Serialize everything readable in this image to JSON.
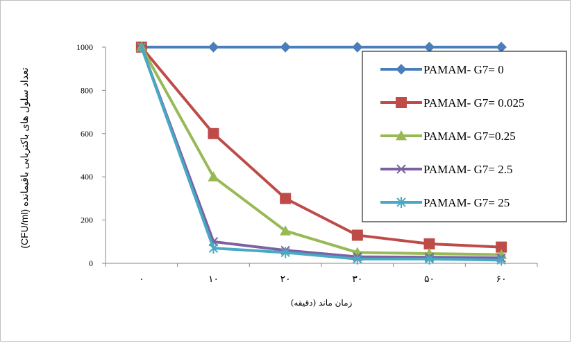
{
  "chart_data": {
    "type": "line",
    "categories": [
      "۰",
      "۱۰",
      "۲۰",
      "۳۰",
      "۵۰",
      "۶۰"
    ],
    "series": [
      {
        "name": "PAMAM- G7= 0",
        "values": [
          1000,
          1000,
          1000,
          1000,
          1000,
          1000
        ],
        "color": "#4a7ebb",
        "marker": "diamond"
      },
      {
        "name": "PAMAM- G7= 0.025",
        "values": [
          1000,
          600,
          300,
          130,
          90,
          75
        ],
        "color": "#be4b48",
        "marker": "square"
      },
      {
        "name": "PAMAM- G7=0.25",
        "values": [
          1000,
          400,
          150,
          50,
          45,
          40
        ],
        "color": "#98b954",
        "marker": "triangle"
      },
      {
        "name": "PAMAM- G7= 2.5",
        "values": [
          1000,
          100,
          60,
          30,
          28,
          25
        ],
        "color": "#7d60a0",
        "marker": "x"
      },
      {
        "name": "PAMAM- G7= 25",
        "values": [
          1000,
          70,
          50,
          20,
          20,
          15
        ],
        "color": "#46aac5",
        "marker": "star"
      }
    ],
    "yticks": [
      "0",
      "200",
      "400",
      "600",
      "800",
      "1000"
    ],
    "ylim": [
      0,
      1000
    ],
    "xlabel": "زمان ماند (دقیقه)",
    "ylabel": "تعداد سلول های باکتریایی باقیمانده (CFU/ml)",
    "grid": false,
    "legend_position": "right"
  }
}
